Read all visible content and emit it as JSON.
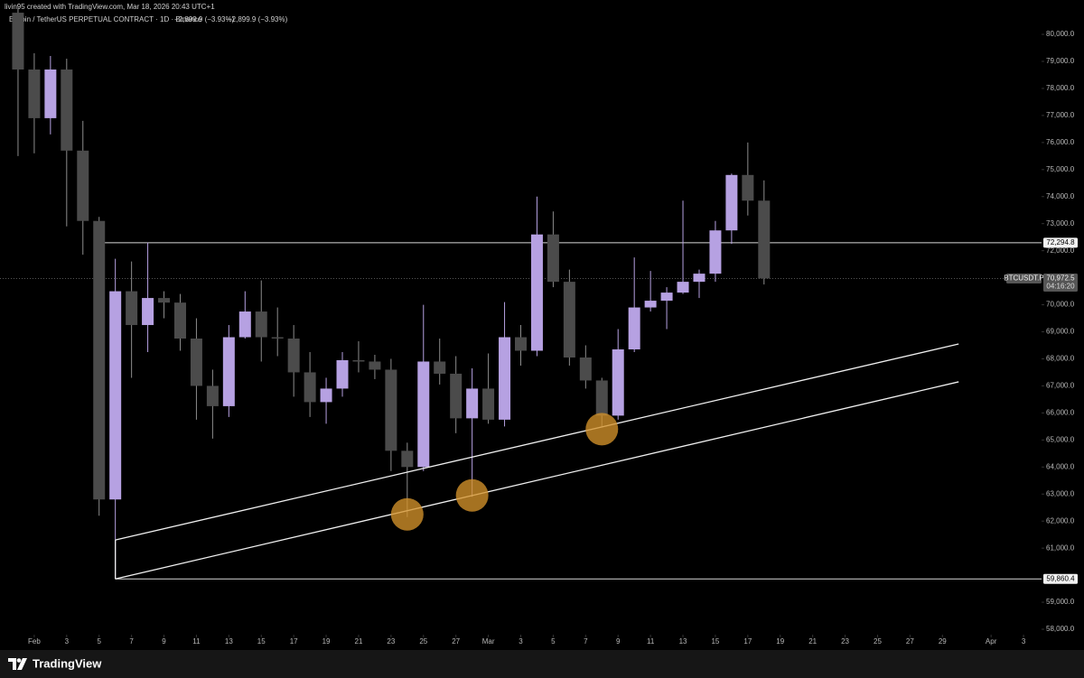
{
  "header": {
    "watermark": "livin95 created with TradingView.com, Mar 18, 2026 20:43 UTC+1",
    "symbol": "Bitcoin / TetherUS PERPETUAL CONTRACT · 1D · Binance",
    "changes": [
      "−2,899.9 (−3.93%)",
      "−2,899.9 (−3.93%)"
    ]
  },
  "chart_data": {
    "type": "candlestick",
    "x": [
      "2026-01-31",
      "2026-02-01",
      "2026-02-02",
      "2026-02-03",
      "2026-02-04",
      "2026-02-05",
      "2026-02-06",
      "2026-02-07",
      "2026-02-08",
      "2026-02-09",
      "2026-02-10",
      "2026-02-11",
      "2026-02-12",
      "2026-02-13",
      "2026-02-14",
      "2026-02-15",
      "2026-02-16",
      "2026-02-17",
      "2026-02-18",
      "2026-02-19",
      "2026-02-20",
      "2026-02-21",
      "2026-02-22",
      "2026-02-23",
      "2026-02-24",
      "2026-02-25",
      "2026-02-26",
      "2026-02-27",
      "2026-02-28",
      "2026-03-01",
      "2026-03-02",
      "2026-03-03",
      "2026-03-04",
      "2026-03-05",
      "2026-03-06",
      "2026-03-07",
      "2026-03-08",
      "2026-03-09",
      "2026-03-10",
      "2026-03-11",
      "2026-03-12",
      "2026-03-13",
      "2026-03-14",
      "2026-03-15",
      "2026-03-16",
      "2026-03-17",
      "2026-03-18"
    ],
    "open": [
      80800,
      78700,
      76900,
      78700,
      75700,
      73100,
      62800,
      70500,
      69250,
      70250,
      70080,
      68750,
      67000,
      66250,
      68800,
      69750,
      68800,
      68750,
      67500,
      66400,
      66900,
      67950,
      67900,
      67600,
      64600,
      64000,
      67900,
      67450,
      65800,
      66900,
      65750,
      68800,
      68300,
      72600,
      70850,
      68050,
      67200,
      65900,
      68350,
      69900,
      70150,
      70450,
      70850,
      71150,
      72750,
      74800,
      73850
    ],
    "high": [
      81000,
      79300,
      79200,
      79100,
      76800,
      73250,
      71700,
      71600,
      72300,
      70500,
      70400,
      69500,
      67600,
      69250,
      70500,
      70900,
      69900,
      69250,
      68250,
      67300,
      68250,
      68650,
      68150,
      68000,
      64900,
      70000,
      68750,
      68100,
      67650,
      68200,
      70100,
      69250,
      74000,
      73450,
      71300,
      68500,
      67300,
      69100,
      71750,
      71250,
      70650,
      73850,
      71300,
      73100,
      74850,
      76000,
      74600
    ],
    "low": [
      75500,
      75600,
      76300,
      72900,
      71850,
      62200,
      59860.4,
      67300,
      68250,
      69500,
      68300,
      65750,
      65050,
      65850,
      68750,
      67900,
      68100,
      66600,
      65850,
      65600,
      66600,
      67500,
      67250,
      63850,
      62150,
      63850,
      67050,
      65250,
      62900,
      65600,
      65500,
      67750,
      68100,
      70650,
      67750,
      66900,
      65500,
      65750,
      68250,
      69750,
      69100,
      70400,
      70250,
      70850,
      72250,
      73300,
      70750
    ],
    "close": [
      78700,
      76900,
      78700,
      75700,
      73100,
      62800,
      70500,
      69250,
      70250,
      70080,
      68750,
      67000,
      66250,
      68800,
      69750,
      68800,
      68750,
      67500,
      66400,
      66900,
      67950,
      67900,
      67600,
      64600,
      64000,
      67900,
      67450,
      65800,
      66900,
      65750,
      68800,
      68300,
      72600,
      70850,
      68050,
      67200,
      65900,
      68350,
      69900,
      70150,
      70450,
      70850,
      71150,
      72750,
      74800,
      73850,
      70972.5
    ],
    "up_color": "#b6a1e2",
    "down_color": "#4b4b4b",
    "wick_color": "#8c8c8c",
    "xlim": [
      "2026-01-30",
      "2026-04-04"
    ],
    "xticks": [
      {
        "value": "2026-02-01",
        "label": "Feb"
      },
      {
        "value": "2026-02-03",
        "label": "3"
      },
      {
        "value": "2026-02-05",
        "label": "5"
      },
      {
        "value": "2026-02-07",
        "label": "7"
      },
      {
        "value": "2026-02-09",
        "label": "9"
      },
      {
        "value": "2026-02-11",
        "label": "11"
      },
      {
        "value": "2026-02-13",
        "label": "13"
      },
      {
        "value": "2026-02-15",
        "label": "15"
      },
      {
        "value": "2026-02-17",
        "label": "17"
      },
      {
        "value": "2026-02-19",
        "label": "19"
      },
      {
        "value": "2026-02-21",
        "label": "21"
      },
      {
        "value": "2026-02-23",
        "label": "23"
      },
      {
        "value": "2026-02-25",
        "label": "25"
      },
      {
        "value": "2026-02-27",
        "label": "27"
      },
      {
        "value": "2026-03-01",
        "label": "Mar"
      },
      {
        "value": "2026-03-03",
        "label": "3"
      },
      {
        "value": "2026-03-05",
        "label": "5"
      },
      {
        "value": "2026-03-07",
        "label": "7"
      },
      {
        "value": "2026-03-09",
        "label": "9"
      },
      {
        "value": "2026-03-11",
        "label": "11"
      },
      {
        "value": "2026-03-13",
        "label": "13"
      },
      {
        "value": "2026-03-15",
        "label": "15"
      },
      {
        "value": "2026-03-17",
        "label": "17"
      },
      {
        "value": "2026-03-19",
        "label": "19"
      },
      {
        "value": "2026-03-21",
        "label": "21"
      },
      {
        "value": "2026-03-23",
        "label": "23"
      },
      {
        "value": "2026-03-25",
        "label": "25"
      },
      {
        "value": "2026-03-27",
        "label": "27"
      },
      {
        "value": "2026-03-29",
        "label": "29"
      },
      {
        "value": "2026-04-01",
        "label": "Apr"
      },
      {
        "value": "2026-04-03",
        "label": "3"
      }
    ],
    "ylim": [
      57800,
      81270
    ],
    "yticks": [
      {
        "value": 80000,
        "label": "80,000.0"
      },
      {
        "value": 79000,
        "label": "79,000.0"
      },
      {
        "value": 78000,
        "label": "78,000.0"
      },
      {
        "value": 77000,
        "label": "77,000.0"
      },
      {
        "value": 76000,
        "label": "76,000.0"
      },
      {
        "value": 75000,
        "label": "75,000.0"
      },
      {
        "value": 74000,
        "label": "74,000.0"
      },
      {
        "value": 73000,
        "label": "73,000.0"
      },
      {
        "value": 72000,
        "label": "72,000.0"
      },
      {
        "value": 70000,
        "label": "70,000.0"
      },
      {
        "value": 69000,
        "label": "69,000.0"
      },
      {
        "value": 68000,
        "label": "68,000.0"
      },
      {
        "value": 67000,
        "label": "67,000.0"
      },
      {
        "value": 66000,
        "label": "66,000.0"
      },
      {
        "value": 65000,
        "label": "65,000.0"
      },
      {
        "value": 64000,
        "label": "64,000.0"
      },
      {
        "value": 63000,
        "label": "63,000.0"
      },
      {
        "value": 62000,
        "label": "62,000.0"
      },
      {
        "value": 61000,
        "label": "61,000.0"
      },
      {
        "value": 59000,
        "label": "59,000.0"
      },
      {
        "value": 58000,
        "label": "58,000.0"
      }
    ],
    "price_lines": [
      {
        "value": 72294.8,
        "label": "72,294.8",
        "start": "2026-02-05"
      },
      {
        "value": 59860.4,
        "label": "59,860.4",
        "start": "2026-02-06"
      }
    ],
    "last_price": {
      "name": "BTCUSDT.P",
      "value": 70972.5,
      "label": "70,972.5",
      "countdown": "04:16:20"
    },
    "trendlines": [
      {
        "x": [
          "2026-02-06",
          "2026-03-30"
        ],
        "y": [
          61300,
          68550
        ]
      },
      {
        "x": [
          "2026-02-06",
          "2026-03-30"
        ],
        "y": [
          59860.4,
          67150
        ]
      }
    ],
    "highlights": [
      {
        "x": "2026-02-24",
        "y": 62250
      },
      {
        "x": "2026-02-28",
        "y": 62950
      },
      {
        "x": "2026-03-08",
        "y": 65400
      }
    ],
    "highlight_color": "#d4922a"
  },
  "footer": {
    "brand": "TradingView"
  }
}
